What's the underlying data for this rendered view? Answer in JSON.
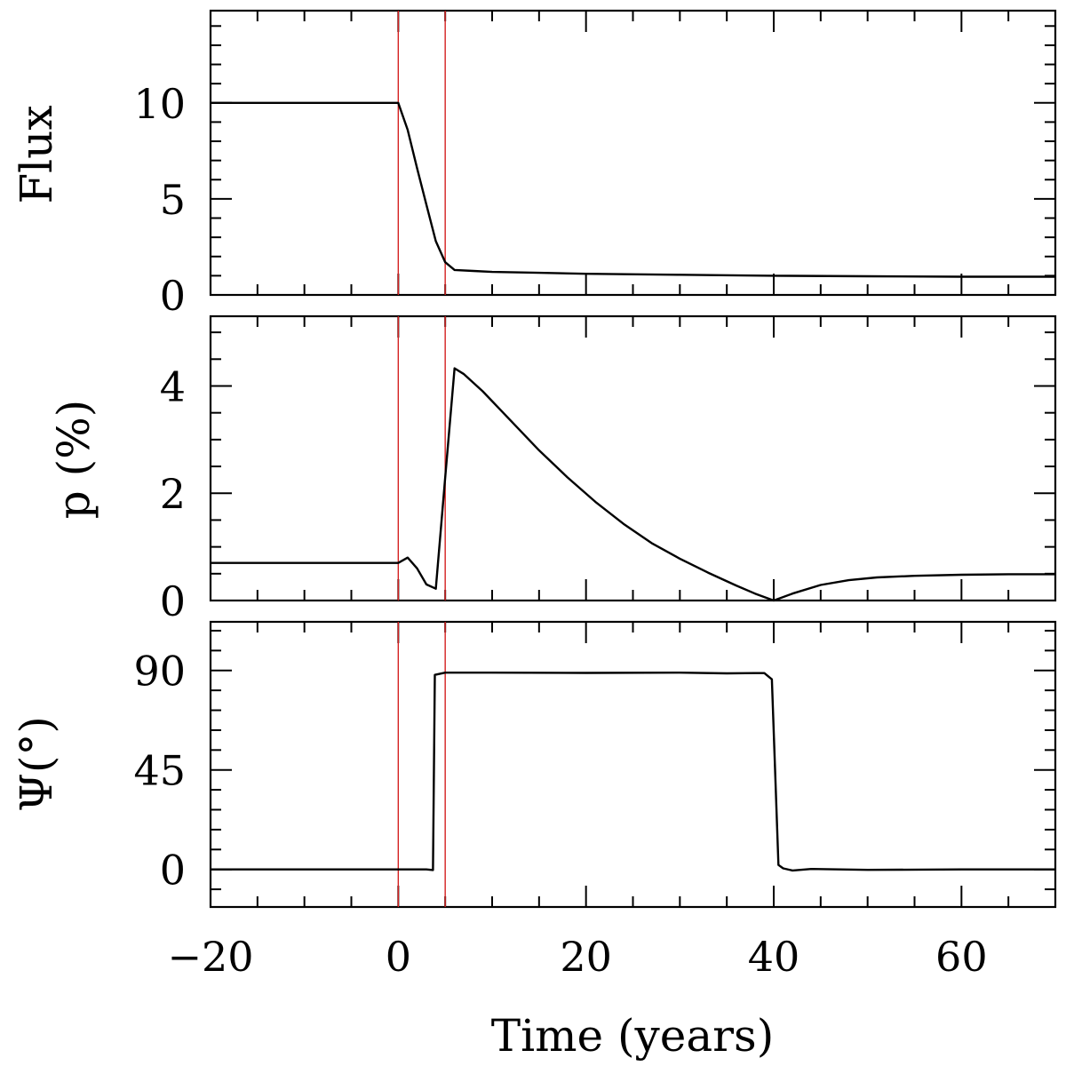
{
  "chart_data": {
    "type": "line",
    "xlabel": "Time (years)",
    "xlim": [
      -20,
      70
    ],
    "x_ticks": [
      -20,
      0,
      20,
      40,
      60
    ],
    "x_tick_labels": [
      "−20",
      "0",
      "20",
      "40",
      "60"
    ],
    "x_minor_step": 5,
    "markers": [
      0,
      5
    ],
    "marker_color": "#d42020",
    "panels": [
      {
        "id": "flux",
        "ylabel": "Flux",
        "ylim": [
          0,
          14.8
        ],
        "y_ticks": [
          0,
          5,
          10
        ],
        "y_tick_labels": [
          "0",
          "5",
          "10"
        ],
        "y_minor_step": 1,
        "series": [
          {
            "x": [
              -20,
              0,
              1,
              2,
              3,
              4,
              5,
              6,
              8,
              10,
              15,
              20,
              30,
              40,
              50,
              60,
              70
            ],
            "y": [
              10,
              10,
              8.6,
              6.6,
              4.7,
              2.8,
              1.7,
              1.3,
              1.25,
              1.2,
              1.15,
              1.1,
              1.05,
              1.0,
              0.97,
              0.95,
              0.95
            ]
          }
        ]
      },
      {
        "id": "polarization",
        "ylabel": "p (%)",
        "ylim": [
          0,
          5.3
        ],
        "y_ticks": [
          0,
          2,
          4
        ],
        "y_tick_labels": [
          "0",
          "2",
          "4"
        ],
        "y_minor_step": 0.5,
        "series": [
          {
            "x": [
              -20,
              0,
              1,
              2,
              3,
              4,
              5,
              6,
              7,
              9,
              12,
              15,
              18,
              21,
              24,
              27,
              30,
              33,
              36,
              38,
              40,
              42,
              45,
              48,
              51,
              55,
              60,
              65,
              70
            ],
            "y": [
              0.7,
              0.7,
              0.8,
              0.6,
              0.3,
              0.22,
              2.3,
              4.33,
              4.22,
              3.9,
              3.35,
              2.8,
              2.3,
              1.84,
              1.43,
              1.07,
              0.78,
              0.52,
              0.28,
              0.13,
              0.0,
              0.13,
              0.29,
              0.38,
              0.43,
              0.46,
              0.48,
              0.49,
              0.49
            ]
          }
        ]
      },
      {
        "id": "angle",
        "ylabel": "Ψ(°)",
        "ylim": [
          -17,
          112
        ],
        "y_ticks": [
          0,
          45,
          90
        ],
        "y_tick_labels": [
          "0",
          "45",
          "90"
        ],
        "y_minor_step": 9,
        "series": [
          {
            "x": [
              -20,
              0,
              3,
              3.7,
              3.9,
              5,
              10,
              20,
              30,
              35,
              38,
              39,
              39.8,
              40.5,
              41,
              42,
              44,
              50,
              60,
              70
            ],
            "y": [
              0,
              0,
              0,
              -0.3,
              88,
              89,
              89,
              88.9,
              89,
              88.7,
              88.8,
              88.8,
              86,
              2,
              0.5,
              -0.5,
              0.2,
              -0.2,
              0,
              0
            ]
          }
        ]
      }
    ]
  }
}
